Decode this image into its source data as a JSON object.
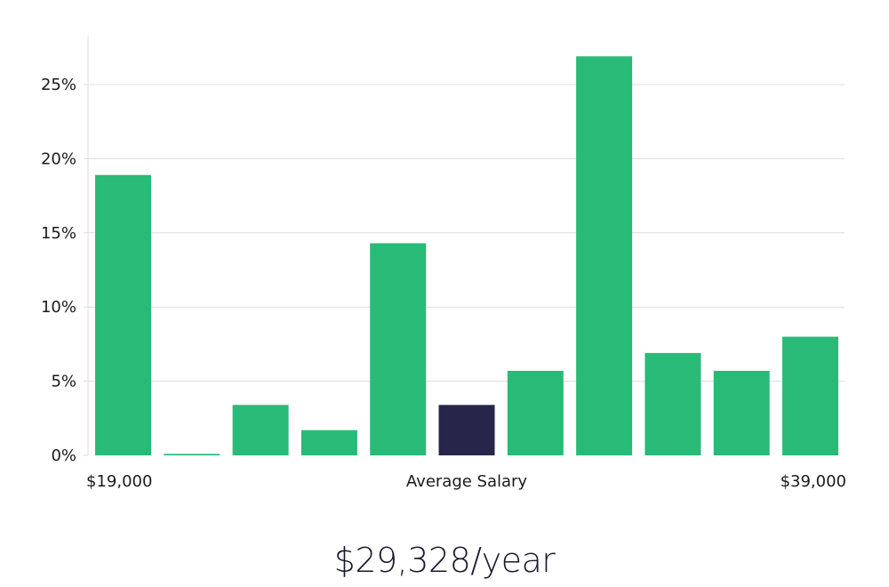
{
  "chart_data": {
    "type": "bar",
    "categories": [
      "1",
      "2",
      "3",
      "4",
      "5",
      "6",
      "7",
      "8",
      "9",
      "10",
      "11"
    ],
    "values": [
      18.9,
      0.1,
      3.4,
      1.7,
      14.3,
      3.4,
      5.7,
      26.9,
      6.9,
      5.7,
      8.0
    ],
    "highlight_index": 5,
    "colors": {
      "bar": "#2aba77",
      "highlight": "#27264a",
      "grid": "#dcdcdc",
      "axis": "#dcdcdc",
      "text": "#1a1a1a"
    },
    "ylim": [
      0,
      28
    ],
    "yticks": [
      {
        "value": 0,
        "label": "0%"
      },
      {
        "value": 5,
        "label": "5%"
      },
      {
        "value": 10,
        "label": "10%"
      },
      {
        "value": 15,
        "label": "15%"
      },
      {
        "value": 20,
        "label": "20%"
      },
      {
        "value": 25,
        "label": "25%"
      }
    ],
    "x_label_left": "$19,000",
    "x_label_center": "Average Salary",
    "x_label_right": "$39,000",
    "grid": true
  },
  "average_salary": "$29,328/year"
}
